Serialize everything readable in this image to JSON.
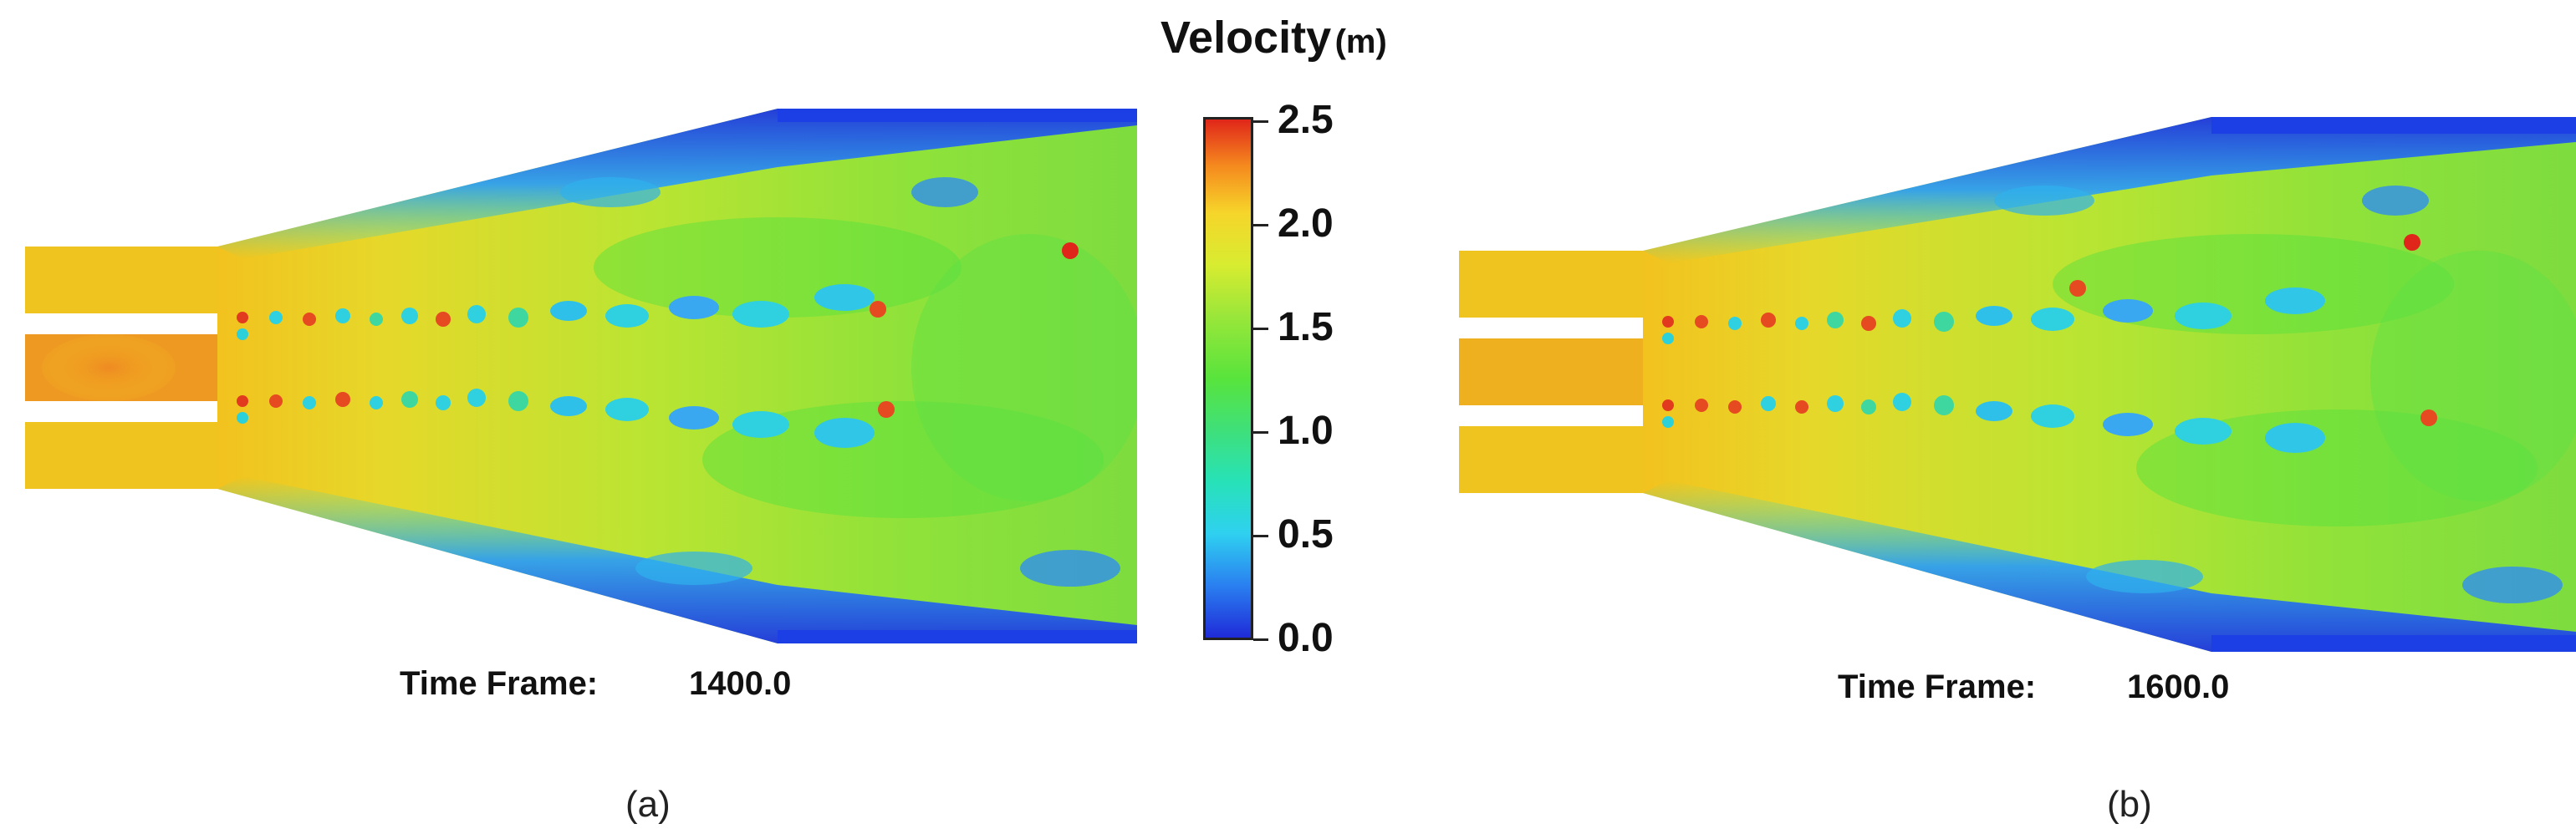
{
  "colorbar": {
    "title_main": "Velocity",
    "title_unit": "(m)",
    "ticks": [
      "0.0",
      "0.5",
      "1.0",
      "1.5",
      "2.0",
      "2.5"
    ],
    "colors": {
      "low": "#1f2bd8",
      "mid": "#58e43c",
      "high": "#e0261a"
    }
  },
  "panels": [
    {
      "time_label": "Time Frame:",
      "time_value": "1400.0",
      "caption": "(a)"
    },
    {
      "time_label": "Time Frame:",
      "time_value": "1600.0",
      "caption": "(b)"
    }
  ]
}
